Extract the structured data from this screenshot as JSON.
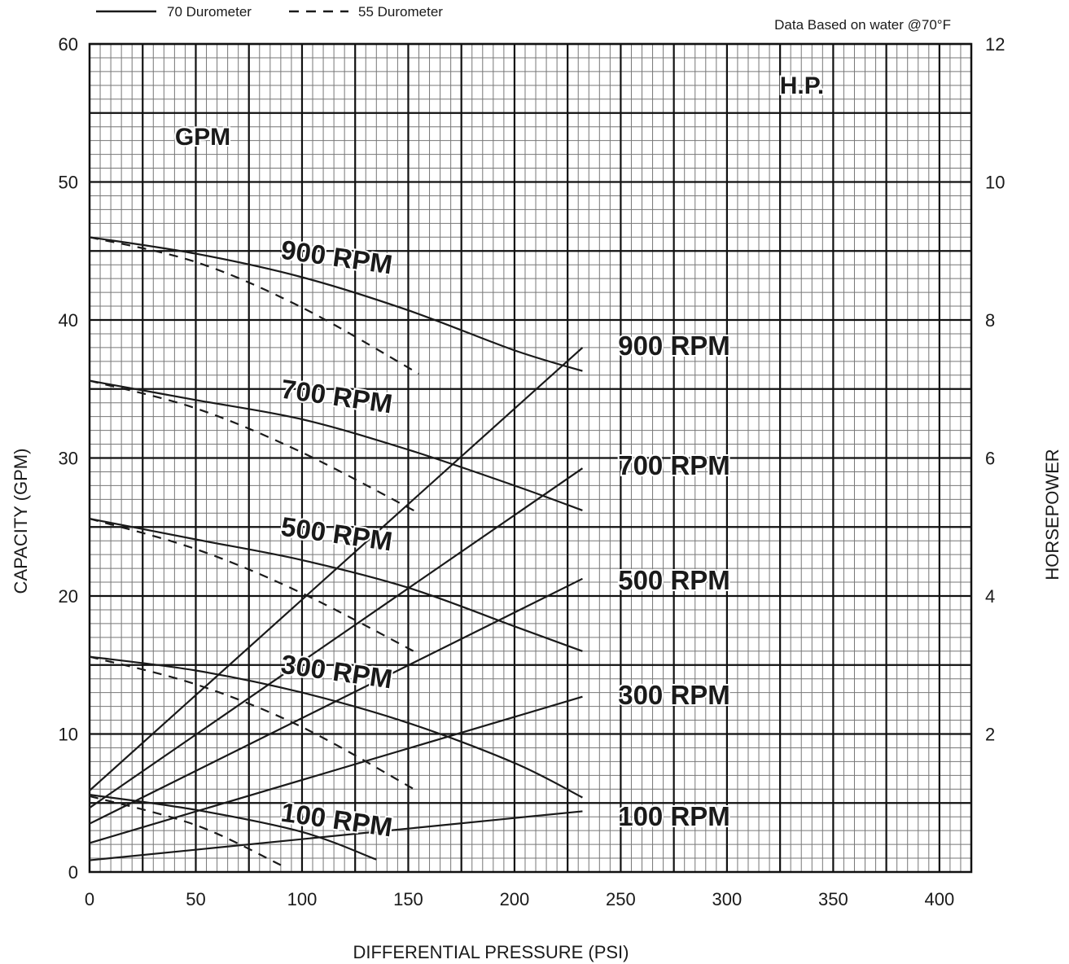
{
  "legend": {
    "solid_label": "70 Durometer",
    "dashed_label": "55 Durometer"
  },
  "note": "Data Based on water @70°F",
  "chart_data": {
    "type": "line",
    "xlabel": "DIFFERENTIAL PRESSURE (PSI)",
    "ylabel_left": "CAPACITY  (GPM)",
    "ylabel_right": "HORSEPOWER",
    "xlim": [
      0,
      415
    ],
    "ylim_left": [
      0,
      60
    ],
    "ylim_right": [
      0,
      12
    ],
    "xticks": [
      "0",
      "50",
      "100",
      "150",
      "200",
      "250",
      "300",
      "350",
      "400"
    ],
    "yticks_left": [
      "0",
      "10",
      "20",
      "30",
      "40",
      "50",
      "60"
    ],
    "yticks_right": [
      "2",
      "4",
      "6",
      "8",
      "10",
      "12"
    ],
    "grid": true,
    "region_labels": {
      "gpm": "GPM",
      "hp": "H.P."
    },
    "legend_position": "top-left",
    "capacity_labels": [
      "900 RPM",
      "700 RPM",
      "500 RPM",
      "300 RPM",
      "100 RPM"
    ],
    "horsepower_labels": [
      "900 RPM",
      "700 RPM",
      "500 RPM",
      "300 RPM",
      "100 RPM"
    ],
    "capacity_70_durometer": [
      {
        "name": "900 RPM",
        "x": [
          0,
          50,
          100,
          150,
          200,
          232
        ],
        "y": [
          46,
          44.8,
          43.1,
          40.7,
          37.8,
          36.3
        ]
      },
      {
        "name": "700 RPM",
        "x": [
          0,
          50,
          100,
          150,
          200,
          232
        ],
        "y": [
          35.6,
          34.2,
          32.8,
          30.6,
          28.0,
          26.2
        ]
      },
      {
        "name": "500 RPM",
        "x": [
          0,
          50,
          100,
          150,
          200,
          232
        ],
        "y": [
          25.6,
          24.1,
          22.6,
          20.6,
          17.8,
          16.0
        ]
      },
      {
        "name": "300 RPM",
        "x": [
          0,
          50,
          100,
          150,
          200,
          232
        ],
        "y": [
          15.6,
          14.6,
          13.0,
          10.8,
          7.9,
          5.4
        ]
      },
      {
        "name": "100 RPM",
        "x": [
          0,
          50,
          100,
          135
        ],
        "y": [
          5.6,
          4.5,
          2.9,
          0.9
        ]
      }
    ],
    "capacity_55_durometer": [
      {
        "name": "900 RPM",
        "x": [
          0,
          50,
          100,
          155
        ],
        "y": [
          46,
          44.2,
          40.9,
          36.1
        ]
      },
      {
        "name": "700 RPM",
        "x": [
          0,
          50,
          100,
          155
        ],
        "y": [
          35.6,
          33.6,
          30.4,
          26.0
        ]
      },
      {
        "name": "500 RPM",
        "x": [
          0,
          50,
          100,
          155
        ],
        "y": [
          25.6,
          23.4,
          20.2,
          15.8
        ]
      },
      {
        "name": "300 RPM",
        "x": [
          0,
          50,
          100,
          155
        ],
        "y": [
          15.6,
          13.6,
          10.5,
          5.8
        ]
      },
      {
        "name": "100 RPM",
        "x": [
          0,
          50,
          90
        ],
        "y": [
          5.5,
          3.4,
          0.5
        ]
      }
    ],
    "horsepower": [
      {
        "name": "900 RPM",
        "x": [
          0,
          232
        ],
        "y": [
          1.18,
          7.6
        ]
      },
      {
        "name": "700 RPM",
        "x": [
          0,
          232
        ],
        "y": [
          0.93,
          5.85
        ]
      },
      {
        "name": "500 RPM",
        "x": [
          0,
          232
        ],
        "y": [
          0.7,
          4.25
        ]
      },
      {
        "name": "300 RPM",
        "x": [
          0,
          232
        ],
        "y": [
          0.42,
          2.54
        ]
      },
      {
        "name": "100 RPM",
        "x": [
          0,
          232
        ],
        "y": [
          0.17,
          0.88
        ]
      }
    ]
  }
}
